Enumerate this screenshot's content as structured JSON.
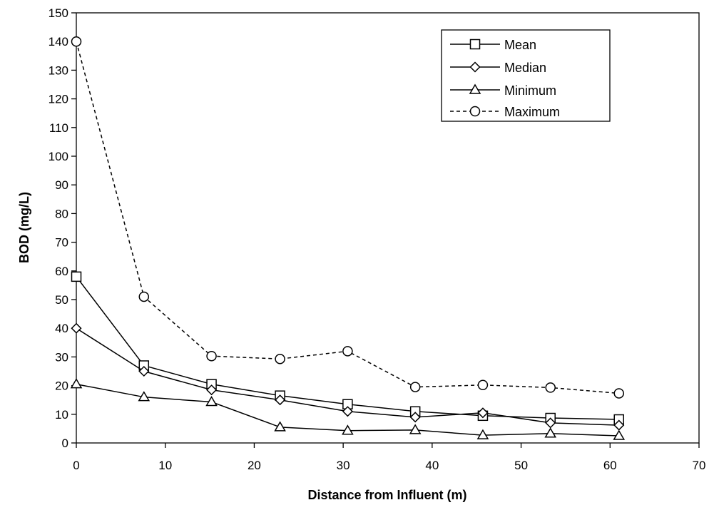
{
  "chart_data": {
    "type": "line",
    "title": "",
    "xlabel": "Distance from Influent (m)",
    "ylabel": "BOD (mg/L)",
    "xlim": [
      0,
      70
    ],
    "ylim": [
      0,
      150
    ],
    "xticks": [
      0,
      10,
      20,
      30,
      40,
      50,
      60,
      70
    ],
    "yticks": [
      0,
      10,
      20,
      30,
      40,
      50,
      60,
      70,
      80,
      90,
      100,
      110,
      120,
      130,
      140,
      150
    ],
    "grid": false,
    "legend_position": "top-right",
    "x": [
      0,
      7.6,
      15.2,
      22.9,
      30.5,
      38.1,
      45.7,
      53.3,
      61.0
    ],
    "series": [
      {
        "name": "Mean",
        "marker": "square",
        "dash": "solid",
        "values": [
          58,
          27,
          20.5,
          16.5,
          13.5,
          11,
          9.5,
          8.7,
          8.2
        ]
      },
      {
        "name": "Median",
        "marker": "diamond",
        "dash": "solid",
        "values": [
          40,
          25,
          18.5,
          15,
          11,
          9,
          10.5,
          7,
          6.2
        ]
      },
      {
        "name": "Minimum",
        "marker": "triangle",
        "dash": "solid",
        "values": [
          20.5,
          16,
          14.3,
          5.5,
          4.3,
          4.5,
          2.7,
          3.3,
          2.5
        ]
      },
      {
        "name": "Maximum",
        "marker": "circle",
        "dash": "dashed",
        "values": [
          140,
          51,
          30.3,
          29.3,
          32,
          19.5,
          20.2,
          19.3,
          17.3
        ]
      }
    ]
  }
}
